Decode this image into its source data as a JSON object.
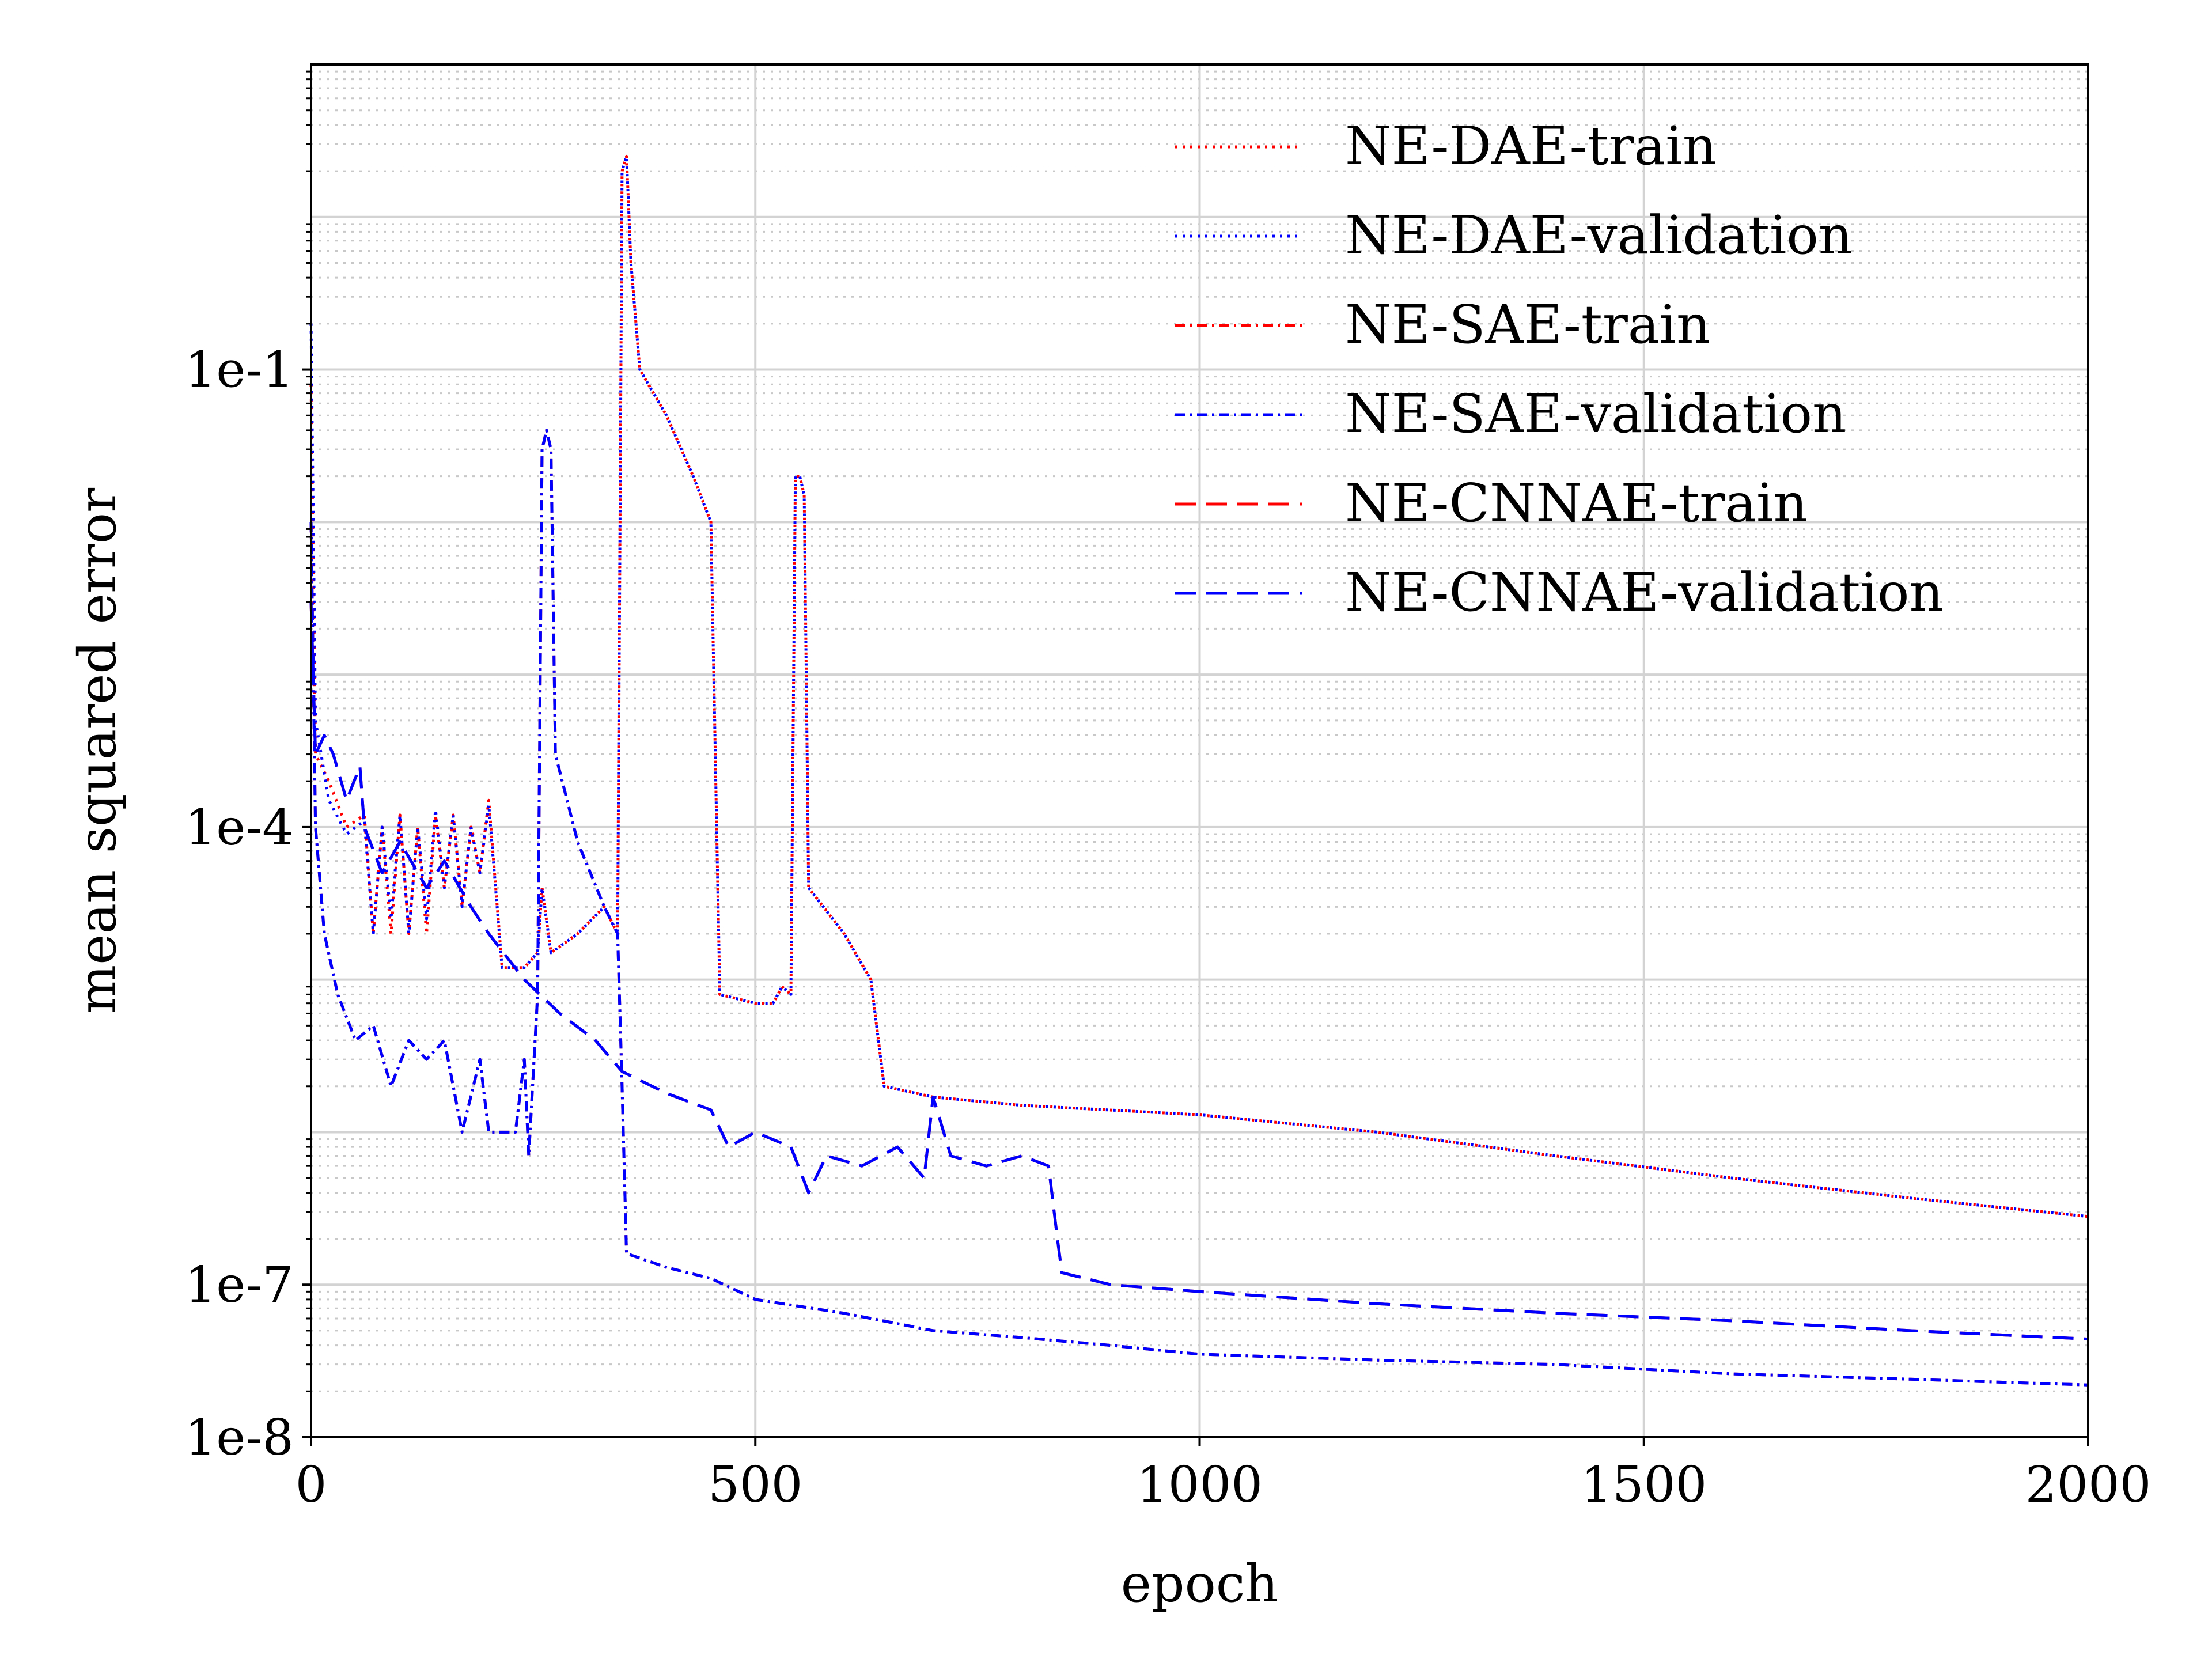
{
  "chart_data": {
    "type": "line",
    "title": "",
    "xlabel": "epoch",
    "ylabel": "mean squared error",
    "xlim": [
      0,
      2000
    ],
    "ylim": [
      1e-08,
      10
    ],
    "yscale": "log",
    "xticks": [
      0,
      500,
      1000,
      1500,
      2000
    ],
    "xtick_labels": [
      "0",
      "500",
      "1000",
      "1500",
      "2000"
    ],
    "yticks": [
      1e-08,
      1e-07,
      0.0001,
      0.1
    ],
    "ytick_labels": [
      "1e-8",
      "1e-7",
      "1e-4",
      "1e-1"
    ],
    "grid": true,
    "legend_position": "top-right",
    "series": [
      {
        "name": "NE-DAE-train",
        "color": "#ff0000",
        "dash": "dotted",
        "points": [
          [
            0,
            0.08
          ],
          [
            5,
            0.0003
          ],
          [
            20,
            0.0002
          ],
          [
            40,
            0.0001
          ],
          [
            60,
            0.00012
          ],
          [
            70,
            2e-05
          ],
          [
            80,
            0.0001
          ],
          [
            90,
            2e-05
          ],
          [
            100,
            0.00012
          ],
          [
            110,
            2e-05
          ],
          [
            120,
            0.0001
          ],
          [
            130,
            2e-05
          ],
          [
            140,
            0.00012
          ],
          [
            150,
            4e-05
          ],
          [
            160,
            0.00012
          ],
          [
            170,
            3e-05
          ],
          [
            180,
            0.0001
          ],
          [
            190,
            5e-05
          ],
          [
            200,
            0.00015
          ],
          [
            215,
            1.2e-05
          ],
          [
            240,
            1.2e-05
          ],
          [
            255,
            1.5e-05
          ],
          [
            260,
            4e-05
          ],
          [
            270,
            1.5e-05
          ],
          [
            300,
            2e-05
          ],
          [
            330,
            3e-05
          ],
          [
            345,
            2e-05
          ],
          [
            350,
            2.0
          ],
          [
            355,
            2.5
          ],
          [
            360,
            0.5
          ],
          [
            370,
            0.1
          ],
          [
            400,
            0.05
          ],
          [
            430,
            0.02
          ],
          [
            450,
            0.01
          ],
          [
            460,
            8e-06
          ],
          [
            500,
            7e-06
          ],
          [
            520,
            7e-06
          ],
          [
            530,
            9e-06
          ],
          [
            540,
            8e-06
          ],
          [
            545,
            0.02
          ],
          [
            550,
            0.02
          ],
          [
            555,
            0.015
          ],
          [
            560,
            4e-05
          ],
          [
            600,
            2e-05
          ],
          [
            630,
            1e-05
          ],
          [
            645,
            2e-06
          ],
          [
            700,
            1.7e-06
          ],
          [
            800,
            1.5e-06
          ],
          [
            1000,
            1.3e-06
          ],
          [
            1200,
            1e-06
          ],
          [
            1400,
            7e-07
          ],
          [
            1600,
            5e-07
          ],
          [
            1800,
            3.7e-07
          ],
          [
            2000,
            2.8e-07
          ]
        ]
      },
      {
        "name": "NE-DAE-validation",
        "color": "#0000ff",
        "dash": "dotted",
        "points": [
          [
            0,
            0.2
          ],
          [
            5,
            0.0005
          ],
          [
            20,
            0.00015
          ],
          [
            40,
            9e-05
          ],
          [
            60,
            0.00011
          ],
          [
            70,
            2e-05
          ],
          [
            80,
            0.0001
          ],
          [
            90,
            2.5e-05
          ],
          [
            100,
            0.00012
          ],
          [
            110,
            2e-05
          ],
          [
            120,
            0.0001
          ],
          [
            130,
            2.5e-05
          ],
          [
            140,
            0.00013
          ],
          [
            150,
            4e-05
          ],
          [
            160,
            0.00012
          ],
          [
            170,
            3e-05
          ],
          [
            180,
            0.0001
          ],
          [
            190,
            5e-05
          ],
          [
            200,
            0.00014
          ],
          [
            215,
            1.2e-05
          ],
          [
            240,
            1.2e-05
          ],
          [
            255,
            1.5e-05
          ],
          [
            260,
            4e-05
          ],
          [
            270,
            1.5e-05
          ],
          [
            300,
            2e-05
          ],
          [
            330,
            3e-05
          ],
          [
            345,
            2e-05
          ],
          [
            350,
            2.0
          ],
          [
            355,
            2.5
          ],
          [
            360,
            0.5
          ],
          [
            370,
            0.1
          ],
          [
            400,
            0.05
          ],
          [
            430,
            0.02
          ],
          [
            450,
            0.01
          ],
          [
            460,
            8e-06
          ],
          [
            500,
            7e-06
          ],
          [
            520,
            7e-06
          ],
          [
            530,
            9e-06
          ],
          [
            540,
            8e-06
          ],
          [
            545,
            0.02
          ],
          [
            550,
            0.02
          ],
          [
            555,
            0.015
          ],
          [
            560,
            4e-05
          ],
          [
            600,
            2e-05
          ],
          [
            630,
            1e-05
          ],
          [
            645,
            2e-06
          ],
          [
            700,
            1.7e-06
          ],
          [
            800,
            1.5e-06
          ],
          [
            1000,
            1.3e-06
          ],
          [
            1200,
            1e-06
          ],
          [
            1400,
            7e-07
          ],
          [
            1600,
            5e-07
          ],
          [
            1800,
            3.7e-07
          ],
          [
            2000,
            2.8e-07
          ]
        ]
      },
      {
        "name": "NE-SAE-train",
        "color": "#ff0000",
        "dash": "dash-dot",
        "points": [
          [
            0,
            0.01
          ],
          [
            5,
            0.0001
          ],
          [
            15,
            2e-05
          ],
          [
            30,
            8e-06
          ],
          [
            50,
            4e-06
          ],
          [
            70,
            5e-06
          ],
          [
            90,
            2e-06
          ],
          [
            110,
            4e-06
          ],
          [
            130,
            3e-06
          ],
          [
            150,
            4e-06
          ],
          [
            170,
            1e-06
          ],
          [
            190,
            3e-06
          ],
          [
            200,
            1e-06
          ],
          [
            230,
            1e-06
          ],
          [
            240,
            3e-06
          ],
          [
            245,
            7e-07
          ],
          [
            255,
            8e-06
          ],
          [
            260,
            0.03
          ],
          [
            265,
            0.04
          ],
          [
            270,
            0.03
          ],
          [
            275,
            0.0003
          ],
          [
            300,
            8e-05
          ],
          [
            330,
            3e-05
          ],
          [
            345,
            2e-05
          ],
          [
            350,
            2e-06
          ],
          [
            355,
            1.6e-07
          ],
          [
            400,
            1.3e-07
          ],
          [
            450,
            1.1e-07
          ],
          [
            500,
            8e-08
          ],
          [
            600,
            6.5e-08
          ],
          [
            700,
            5e-08
          ],
          [
            800,
            4.5e-08
          ],
          [
            900,
            4e-08
          ],
          [
            1000,
            3.5e-08
          ],
          [
            1200,
            3.2e-08
          ],
          [
            1400,
            3e-08
          ],
          [
            1600,
            2.6e-08
          ],
          [
            1800,
            2.4e-08
          ],
          [
            2000,
            2.2e-08
          ]
        ]
      },
      {
        "name": "NE-SAE-validation",
        "color": "#0000ff",
        "dash": "dash-dot",
        "points": [
          [
            0,
            0.01
          ],
          [
            5,
            0.0001
          ],
          [
            15,
            2e-05
          ],
          [
            30,
            8e-06
          ],
          [
            50,
            4e-06
          ],
          [
            70,
            5e-06
          ],
          [
            90,
            2e-06
          ],
          [
            110,
            4e-06
          ],
          [
            130,
            3e-06
          ],
          [
            150,
            4e-06
          ],
          [
            170,
            1e-06
          ],
          [
            190,
            3e-06
          ],
          [
            200,
            1e-06
          ],
          [
            230,
            1e-06
          ],
          [
            240,
            3e-06
          ],
          [
            245,
            7e-07
          ],
          [
            255,
            8e-06
          ],
          [
            260,
            0.03
          ],
          [
            265,
            0.04
          ],
          [
            270,
            0.03
          ],
          [
            275,
            0.0003
          ],
          [
            300,
            8e-05
          ],
          [
            330,
            3e-05
          ],
          [
            345,
            2e-05
          ],
          [
            350,
            2e-06
          ],
          [
            355,
            1.6e-07
          ],
          [
            400,
            1.3e-07
          ],
          [
            450,
            1.1e-07
          ],
          [
            500,
            8e-08
          ],
          [
            600,
            6.5e-08
          ],
          [
            700,
            5e-08
          ],
          [
            800,
            4.5e-08
          ],
          [
            900,
            4e-08
          ],
          [
            1000,
            3.5e-08
          ],
          [
            1200,
            3.2e-08
          ],
          [
            1400,
            3e-08
          ],
          [
            1600,
            2.6e-08
          ],
          [
            1800,
            2.4e-08
          ],
          [
            2000,
            2.2e-08
          ]
        ]
      },
      {
        "name": "NE-CNNAE-train",
        "color": "#ff0000",
        "dash": "dashed",
        "points": [
          [
            0,
            0.003
          ],
          [
            5,
            0.0003
          ],
          [
            15,
            0.0004
          ],
          [
            25,
            0.0003
          ],
          [
            40,
            0.00015
          ],
          [
            55,
            0.00025
          ],
          [
            60,
            0.0001
          ],
          [
            80,
            5e-05
          ],
          [
            100,
            8e-05
          ],
          [
            130,
            4e-05
          ],
          [
            150,
            6e-05
          ],
          [
            180,
            3e-05
          ],
          [
            200,
            2e-05
          ],
          [
            240,
            1e-05
          ],
          [
            280,
            6e-06
          ],
          [
            320,
            4e-06
          ],
          [
            350,
            2.5e-06
          ],
          [
            400,
            1.8e-06
          ],
          [
            450,
            1.4e-06
          ],
          [
            470,
            8e-07
          ],
          [
            500,
            1e-06
          ],
          [
            540,
            8e-07
          ],
          [
            560,
            4e-07
          ],
          [
            580,
            7e-07
          ],
          [
            620,
            6e-07
          ],
          [
            660,
            8e-07
          ],
          [
            690,
            5e-07
          ],
          [
            700,
            1.7e-06
          ],
          [
            720,
            7e-07
          ],
          [
            760,
            6e-07
          ],
          [
            800,
            7e-07
          ],
          [
            830,
            6e-07
          ],
          [
            840,
            2e-07
          ],
          [
            845,
            1.2e-07
          ],
          [
            900,
            1e-07
          ],
          [
            1000,
            9e-08
          ],
          [
            1200,
            7.5e-08
          ],
          [
            1400,
            6.5e-08
          ],
          [
            1600,
            5.8e-08
          ],
          [
            1800,
            5e-08
          ],
          [
            2000,
            4.4e-08
          ]
        ]
      },
      {
        "name": "NE-CNNAE-validation",
        "color": "#0000ff",
        "dash": "dashed",
        "points": [
          [
            0,
            0.003
          ],
          [
            5,
            0.0003
          ],
          [
            15,
            0.0004
          ],
          [
            25,
            0.0003
          ],
          [
            40,
            0.00015
          ],
          [
            55,
            0.00025
          ],
          [
            60,
            0.0001
          ],
          [
            80,
            5e-05
          ],
          [
            100,
            8e-05
          ],
          [
            130,
            4e-05
          ],
          [
            150,
            6e-05
          ],
          [
            180,
            3e-05
          ],
          [
            200,
            2e-05
          ],
          [
            240,
            1e-05
          ],
          [
            280,
            6e-06
          ],
          [
            320,
            4e-06
          ],
          [
            350,
            2.5e-06
          ],
          [
            400,
            1.8e-06
          ],
          [
            450,
            1.4e-06
          ],
          [
            470,
            8e-07
          ],
          [
            500,
            1e-06
          ],
          [
            540,
            8e-07
          ],
          [
            560,
            4e-07
          ],
          [
            580,
            7e-07
          ],
          [
            620,
            6e-07
          ],
          [
            660,
            8e-07
          ],
          [
            690,
            5e-07
          ],
          [
            700,
            1.7e-06
          ],
          [
            720,
            7e-07
          ],
          [
            760,
            6e-07
          ],
          [
            800,
            7e-07
          ],
          [
            830,
            6e-07
          ],
          [
            840,
            2e-07
          ],
          [
            845,
            1.2e-07
          ],
          [
            900,
            1e-07
          ],
          [
            1000,
            9e-08
          ],
          [
            1200,
            7.5e-08
          ],
          [
            1400,
            6.5e-08
          ],
          [
            1600,
            5.8e-08
          ],
          [
            1800,
            5e-08
          ],
          [
            2000,
            4.4e-08
          ]
        ]
      }
    ]
  }
}
